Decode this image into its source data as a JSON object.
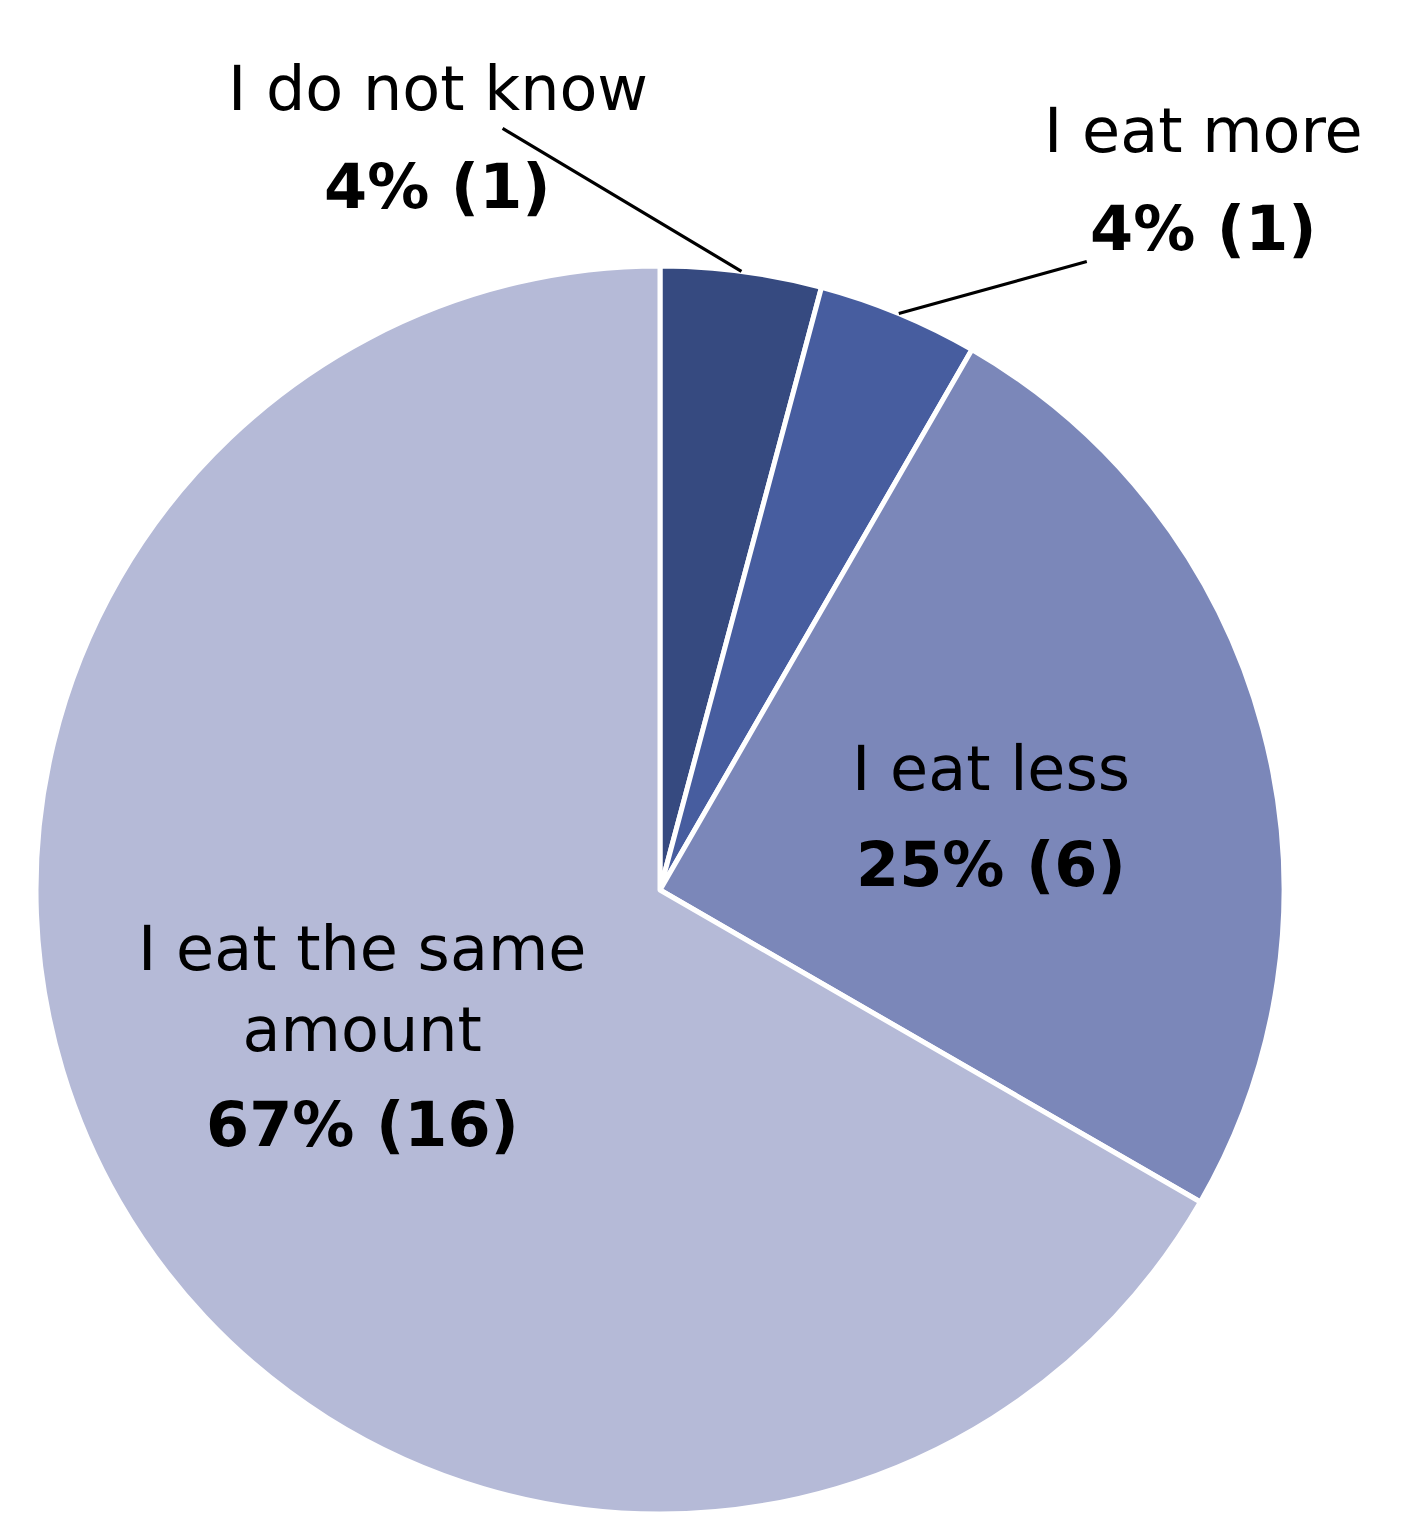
{
  "chart_data": {
    "type": "pie",
    "categories": [
      "I do not know",
      "I eat more",
      "I eat less",
      "I eat the same amount"
    ],
    "values": [
      1,
      1,
      6,
      16
    ],
    "value_labels": [
      "4% (1)",
      "4% (1)",
      "25% (6)",
      "67% (16)"
    ],
    "colors": [
      "#364a80",
      "#475d9f",
      "#7b87b9",
      "#b5bad7"
    ],
    "legend": false
  }
}
